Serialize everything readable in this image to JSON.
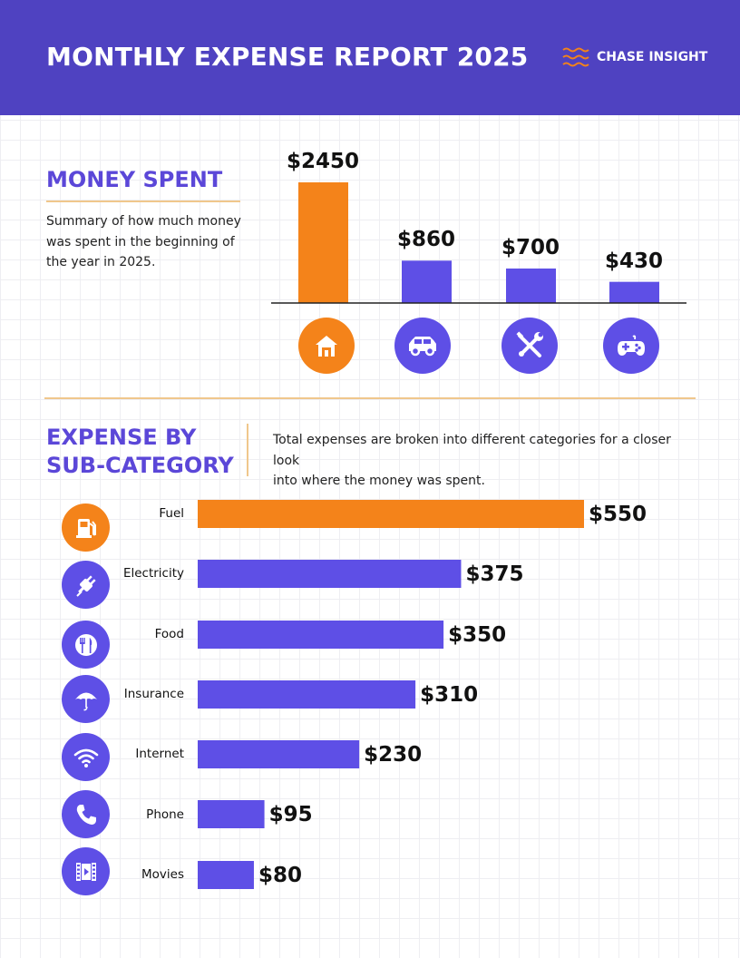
{
  "header": {
    "title": "MONTHLY EXPENSE REPORT 2025",
    "brand": "CHASE INSIGHT",
    "brand_icon": "wave-lines-icon",
    "background": "#4f42c1",
    "brand_icon_color": "#f4831a"
  },
  "money_spent": {
    "title": "MONEY SPENT",
    "desc_lines": [
      "Summary of how much money",
      "was spent in the beginning of",
      "the year in 2025."
    ]
  },
  "expense_by_sub": {
    "title_lines": [
      "EXPENSE BY",
      "SUB-CATEGORY"
    ],
    "desc_lines": [
      "Total expenses are broken into different categories for a closer look",
      "into where the money was spent."
    ]
  },
  "colors": {
    "accent": "#f4831a",
    "primary": "#5e4fe6",
    "divider": "#f0c78c"
  },
  "chart_data": [
    {
      "type": "bar",
      "categories": [
        "Housing",
        "Transportation",
        "Utilities",
        "Entertainment"
      ],
      "values": [
        2450,
        860,
        700,
        430
      ],
      "value_labels": [
        "$2450",
        "$860",
        "$700",
        "$430"
      ],
      "icons": [
        "house-icon",
        "car-icon",
        "tools-icon",
        "gamepad-icon"
      ],
      "highlight_index": 0,
      "ylim": [
        0,
        2450
      ]
    },
    {
      "type": "bar",
      "orientation": "horizontal",
      "categories": [
        "Fuel",
        "Electricity",
        "Food",
        "Insurance",
        "Internet",
        "Phone",
        "Movies"
      ],
      "values": [
        550,
        375,
        350,
        310,
        230,
        95,
        80
      ],
      "value_labels": [
        "$550",
        "$375",
        "$350",
        "$310",
        "$230",
        "$95",
        "$80"
      ],
      "icons": [
        "fuel-pump-icon",
        "plug-icon",
        "fork-knife-icon",
        "umbrella-icon",
        "wifi-icon",
        "phone-icon",
        "film-icon"
      ],
      "highlight_index": 0,
      "xlim": [
        0,
        550
      ]
    }
  ]
}
